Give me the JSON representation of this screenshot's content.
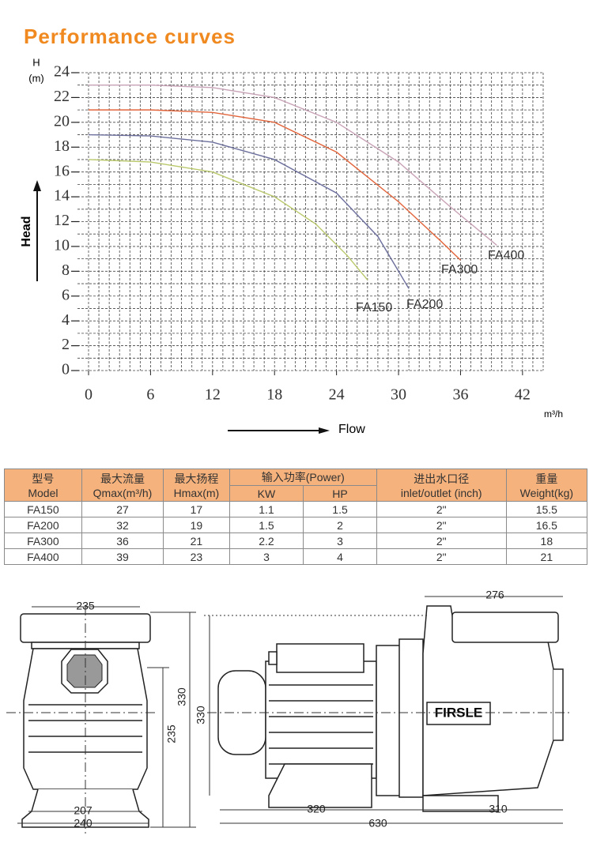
{
  "chart_data": {
    "type": "line",
    "title": "Performance curves",
    "ylabel_lines": [
      "H",
      "(m)"
    ],
    "yaxis_name": "Head",
    "xaxis_name": "Flow",
    "xunit": "m³/h",
    "xlim": [
      0,
      44
    ],
    "ylim": [
      0,
      24
    ],
    "xticks": [
      0,
      6,
      12,
      18,
      24,
      30,
      36,
      42
    ],
    "yticks": [
      0,
      2,
      4,
      6,
      8,
      10,
      12,
      14,
      16,
      18,
      20,
      22,
      24
    ],
    "grid": {
      "x_step": 1,
      "y_step": 1
    },
    "series": [
      {
        "name": "FA150",
        "color": "#b9c86a",
        "x": [
          0,
          6,
          12,
          18,
          22,
          25,
          27
        ],
        "values": [
          17,
          16.8,
          16,
          14,
          11.8,
          9.3,
          7.3
        ]
      },
      {
        "name": "FA200",
        "color": "#6c6f9c",
        "x": [
          0,
          6,
          12,
          18,
          24,
          28,
          31
        ],
        "values": [
          19,
          18.9,
          18.4,
          17,
          14.3,
          10.8,
          6.6
        ]
      },
      {
        "name": "FA300",
        "color": "#e2653c",
        "x": [
          0,
          6,
          12,
          18,
          24,
          30,
          34,
          36
        ],
        "values": [
          21,
          21,
          20.8,
          20,
          17.6,
          13.6,
          10.5,
          8.9
        ]
      },
      {
        "name": "FA400",
        "color": "#c8a2b6",
        "x": [
          0,
          6,
          12,
          18,
          24,
          30,
          35,
          39.5
        ],
        "values": [
          23,
          23,
          22.8,
          22,
          20,
          16.8,
          13.2,
          10.1
        ]
      }
    ]
  },
  "table": {
    "header": [
      {
        "zh": "型号",
        "en": "Model"
      },
      {
        "zh": "最大流量",
        "en": "Qmax(m³/h)"
      },
      {
        "zh": "最大扬程",
        "en": "Hmax(m)"
      },
      {
        "zh": "输入功率(Power)",
        "sub": [
          "KW",
          "HP"
        ]
      },
      {
        "zh": "进出水口径",
        "en": "inlet/outlet (inch)"
      },
      {
        "zh": "重量",
        "en": "Weight(kg)"
      }
    ],
    "rows": [
      [
        "FA150",
        "27",
        "17",
        "1.1",
        "1.5",
        "2\"",
        "15.5"
      ],
      [
        "FA200",
        "32",
        "19",
        "1.5",
        "2",
        "2\"",
        "16.5"
      ],
      [
        "FA300",
        "36",
        "21",
        "2.2",
        "3",
        "2\"",
        "18"
      ],
      [
        "FA400",
        "39",
        "23",
        "3",
        "4",
        "2\"",
        "21"
      ]
    ]
  },
  "drawing": {
    "brand": "FIRSLE",
    "front": {
      "width_top": "235",
      "height": "330",
      "height_lower": "235",
      "base_inner": "207",
      "base_outer": "240"
    },
    "side": {
      "pump_length": "276",
      "height": "330",
      "motor_length": "320",
      "pump_base": "310",
      "total_length": "630"
    }
  }
}
